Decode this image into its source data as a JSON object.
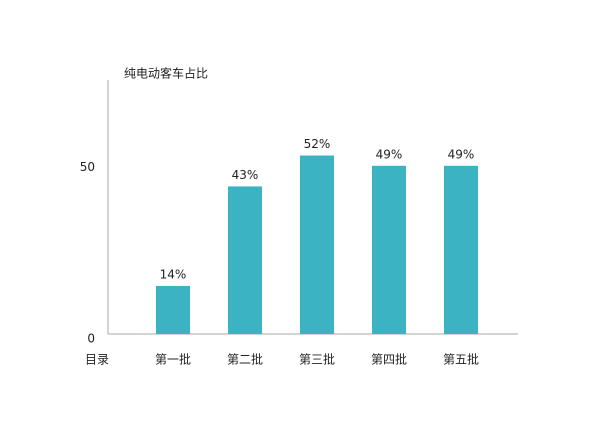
{
  "chart_data": {
    "type": "bar",
    "title": "纯电动客车占比",
    "x_label": "目录",
    "categories": [
      "第一批",
      "第二批",
      "第三批",
      "第四批",
      "第五批"
    ],
    "values": [
      14,
      43,
      52,
      49,
      49
    ],
    "value_labels": [
      "14%",
      "43%",
      "52%",
      "49%",
      "49%"
    ],
    "color": "#3bb3c3",
    "ylim": [
      0,
      74
    ],
    "yticks": [
      0,
      50
    ],
    "grid": false
  }
}
